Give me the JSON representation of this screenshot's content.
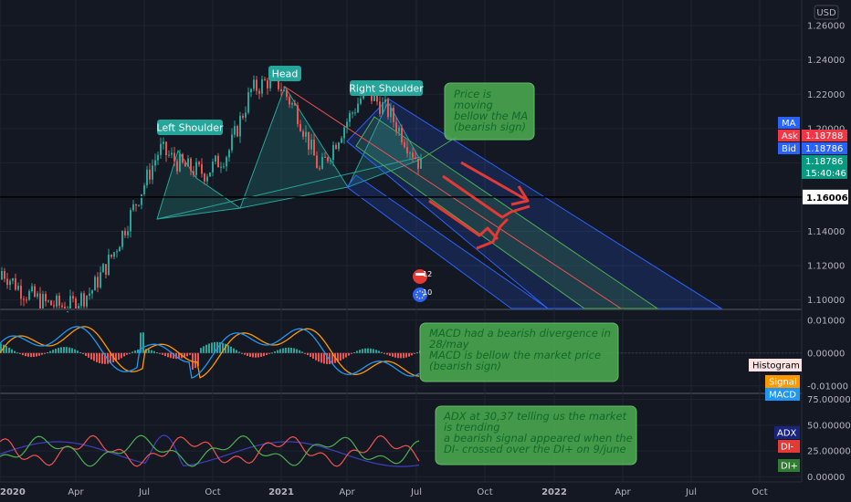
{
  "chart_data": [
    {
      "type": "line",
      "panel": "price",
      "currency": "USD",
      "y_ticks": [
        "1.26000",
        "1.24000",
        "1.22000",
        "1.20000",
        "1.18000",
        "1.16000",
        "1.14000",
        "1.12000",
        "1.10000"
      ],
      "ylim": [
        1.095,
        1.275
      ],
      "horizontal_line": {
        "value": 1.16006,
        "label": "1.16006"
      },
      "price_tags": [
        {
          "text": "MA",
          "color": "#2962ff"
        },
        {
          "text": "Ask",
          "color": "#f23645"
        },
        {
          "text": "1.18788",
          "color": "#f23645"
        },
        {
          "text": "Bid",
          "color": "#2962ff"
        },
        {
          "text": "1.18786",
          "color": "#2962ff"
        },
        {
          "text": "1.18786",
          "color": "#089981"
        },
        {
          "text": "15:40:46",
          "color": "#089981"
        }
      ],
      "labels": [
        "Left Shoulder",
        "Head",
        "Right Shoulder"
      ],
      "annotation": "Price is moving bellow the MA (bearish sign)",
      "annotation_lines": [
        "Price is",
        "moving",
        "bellow the MA",
        "(bearish sign)"
      ],
      "event_badges": [
        "12",
        "10"
      ],
      "series": [
        {
          "color": "#26a69a",
          "x": [
            "2019-12",
            "2020-01",
            "2020-02",
            "2020-03",
            "2020-04",
            "2020-05",
            "2020-06",
            "2020-07",
            "2020-08",
            "2020-09",
            "2020-10",
            "2020-11",
            "2020-12",
            "2021-01",
            "2021-02",
            "2021-03",
            "2021-04",
            "2021-05",
            "2021-06",
            "2021-07"
          ],
          "values": [
            1.112,
            1.118,
            1.105,
            1.098,
            1.096,
            1.105,
            1.128,
            1.158,
            1.188,
            1.178,
            1.174,
            1.186,
            1.222,
            1.23,
            1.21,
            1.175,
            1.2,
            1.222,
            1.21,
            1.188
          ]
        }
      ]
    },
    {
      "type": "line",
      "panel": "macd",
      "y_ticks": [
        "0.01000",
        "0.00000",
        "-0.01000"
      ],
      "ylim": [
        -0.012,
        0.013
      ],
      "legend": [
        "Histogram",
        "Signal",
        "MACD"
      ],
      "annotation": "MACD had a bearish divergence in 28/may MACD is bellow the market price (bearish sign)",
      "annotation_lines": [
        "MACD had a bearish divergence in",
        "28/may",
        "MACD is bellow the market price",
        "(bearish sign)"
      ]
    },
    {
      "type": "line",
      "panel": "adx",
      "y_ticks": [
        "75.00000",
        "50.00000",
        "25.00000",
        "0.00000"
      ],
      "ylim": [
        -5,
        80
      ],
      "legend": [
        "ADX",
        "DI-",
        "DI+"
      ],
      "annotation": "ADX at 30,37 telling us the market is trending a bearish signal appeared when the DI- crossed over the DI+ on 9/june",
      "annotation_lines": [
        "ADX at 30,37 telling us the market",
        "is trending",
        "a bearish signal appeared when the",
        "DI- crossed over the DI+ on 9/june"
      ]
    }
  ],
  "time_axis": [
    "2020",
    "Apr",
    "Jul",
    "Oct",
    "2021",
    "Apr",
    "Jul",
    "Oct",
    "2022",
    "Apr",
    "Jul",
    "Oct"
  ],
  "colors": {
    "background": "#141823",
    "up": "#26a69a",
    "down": "#ef5350",
    "annotation_fill": "#4caf50",
    "arrow": "#e53935",
    "channel_blue": "#2962ff",
    "channel_green": "#4caf50"
  }
}
